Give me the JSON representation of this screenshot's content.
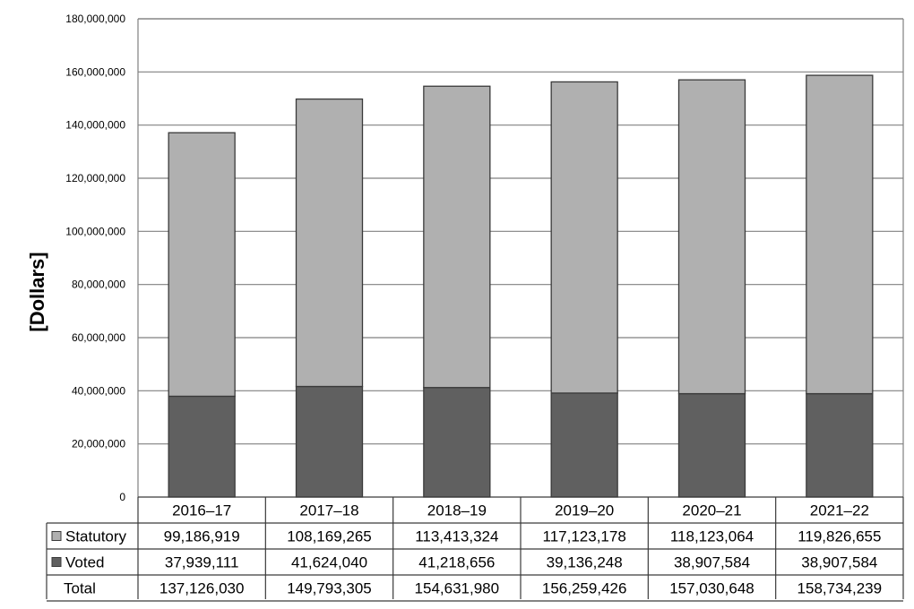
{
  "chart_data": {
    "type": "bar",
    "stacked": true,
    "ylabel": "[Dollars]",
    "ylim": [
      0,
      180000000
    ],
    "yticks": [
      0,
      20000000,
      40000000,
      60000000,
      80000000,
      100000000,
      120000000,
      140000000,
      160000000,
      180000000
    ],
    "ytick_labels": [
      "0",
      "20,000,000",
      "40,000,000",
      "60,000,000",
      "80,000,000",
      "100,000,000",
      "120,000,000",
      "140,000,000",
      "160,000,000",
      "180,000,000"
    ],
    "grid": true,
    "categories": [
      "2016–17",
      "2017–18",
      "2018–19",
      "2019–20",
      "2020–21",
      "2021–22"
    ],
    "series": [
      {
        "name": "Voted",
        "color": "#606060",
        "values": [
          37939111,
          41624040,
          41218656,
          39136248,
          38907584,
          38907584
        ],
        "labels": [
          "37,939,111",
          "41,624,040",
          "41,218,656",
          "39,136,248",
          "38,907,584",
          "38,907,584"
        ]
      },
      {
        "name": "Statutory",
        "color": "#b0b0b0",
        "values": [
          99186919,
          108169265,
          113413324,
          117123178,
          118123064,
          119826655
        ],
        "labels": [
          "99,186,919",
          "108,169,265",
          "113,413,324",
          "117,123,178",
          "118,123,064",
          "119,826,655"
        ]
      }
    ],
    "total": {
      "name": "Total",
      "values": [
        137126030,
        149793305,
        154631980,
        156259426,
        157030648,
        158734239
      ],
      "labels": [
        "137,126,030",
        "149,793,305",
        "154,631,980",
        "156,259,426",
        "157,030,648",
        "158,734,239"
      ]
    },
    "table_row_order": [
      "Statutory",
      "Voted",
      "Total"
    ]
  }
}
